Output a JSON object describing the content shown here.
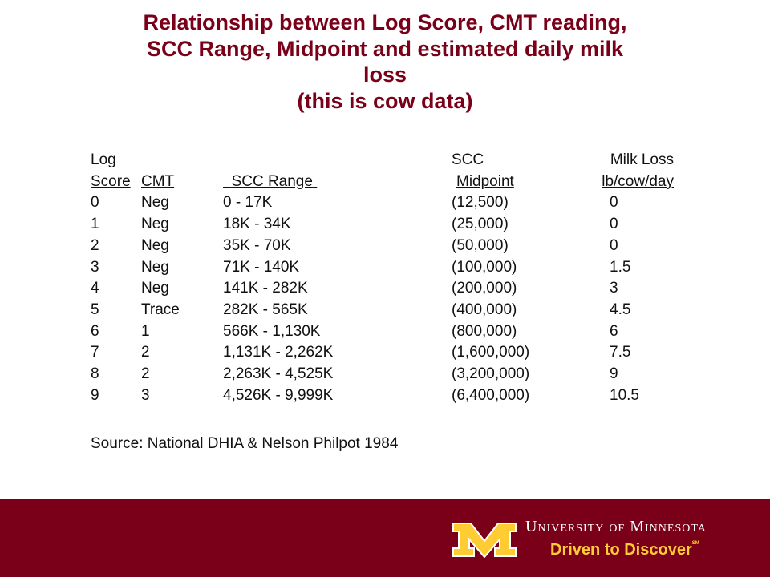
{
  "title": {
    "line1": "Relationship between Log Score, CMT reading,",
    "line2": "SCC Range, Midpoint and estimated daily milk",
    "line3": "loss",
    "line4": "(this is cow data)"
  },
  "table": {
    "header_top": {
      "c1": "Log",
      "c4": "SCC",
      "c5": "Milk Loss"
    },
    "header_bottom": {
      "c1": "Score",
      "c2": "CMT",
      "c3": "SCC Range",
      "c4": "Midpoint",
      "c5": "lb/cow/day"
    },
    "rows": [
      [
        "0",
        "Neg",
        "0 - 17K",
        "(12,500)",
        "0"
      ],
      [
        "1",
        "Neg",
        "18K - 34K",
        "(25,000)",
        "0"
      ],
      [
        "2",
        "Neg",
        "35K - 70K",
        "(50,000)",
        "0"
      ],
      [
        "3",
        "Neg",
        "71K - 140K",
        "(100,000)",
        "1.5"
      ],
      [
        "4",
        "Neg",
        "141K - 282K",
        "(200,000)",
        "3"
      ],
      [
        "5",
        "Trace",
        "282K - 565K",
        "(400,000)",
        "4.5"
      ],
      [
        "6",
        "1",
        "566K - 1,130K",
        "(800,000)",
        "6"
      ],
      [
        "7",
        "2",
        "1,131K - 2,262K",
        "(1,600,000)",
        "7.5"
      ],
      [
        "8",
        "2",
        "2,263K - 4,525K",
        "(3,200,000)",
        "9"
      ],
      [
        "9",
        "3",
        "4,526K - 9,999K",
        "(6,400,000)",
        "10.5"
      ]
    ]
  },
  "source": "Source: National DHIA & Nelson Philpot 1984",
  "footer": {
    "university": "University of Minnesota",
    "tagline": "Driven to Discover",
    "service_mark": "SM"
  },
  "colors": {
    "maroon": "#7a0019",
    "gold": "#ffcc33"
  },
  "icons": {
    "logo": "block-m-logo"
  }
}
